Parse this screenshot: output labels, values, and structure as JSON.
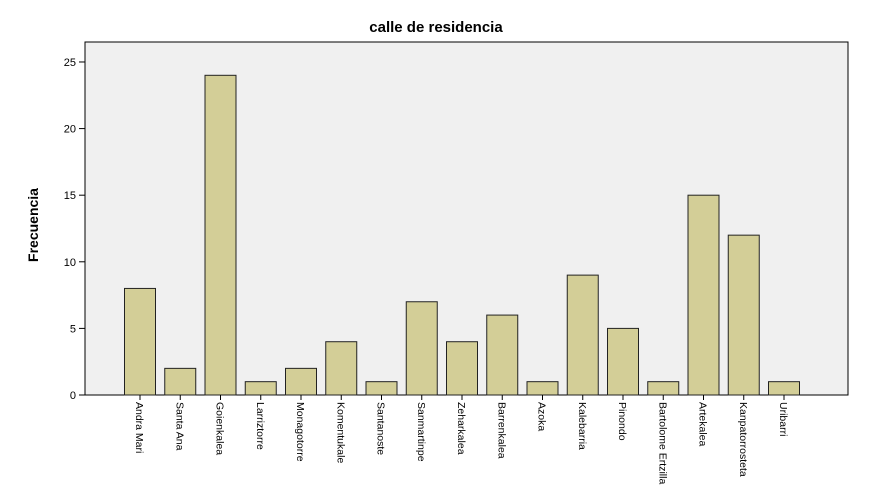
{
  "chart_data": {
    "type": "bar",
    "title": "calle de residencia",
    "y_label": "Frecuencia",
    "categories": [
      "Andra Mari",
      "Santa Ana",
      "Goienkalea",
      "Larriztorre",
      "Monagotorre",
      "Komentukale",
      "Santanoste",
      "Sanmartinpe",
      "Zeharkalea",
      "Barrenkalea",
      "Azoka",
      "Kalebarria",
      "Pinondo",
      "Bartolome Ertzilla",
      "Artekalea",
      "Kanpatorrosteta",
      "Uribarri"
    ],
    "values": [
      8,
      2,
      24,
      1,
      2,
      4,
      1,
      7,
      4,
      6,
      1,
      9,
      5,
      1,
      15,
      12,
      1
    ],
    "color": "#d3ce97",
    "ylim": [
      0,
      26.5
    ],
    "yticks": [
      0,
      5,
      10,
      15,
      20,
      25
    ],
    "grid": false
  }
}
